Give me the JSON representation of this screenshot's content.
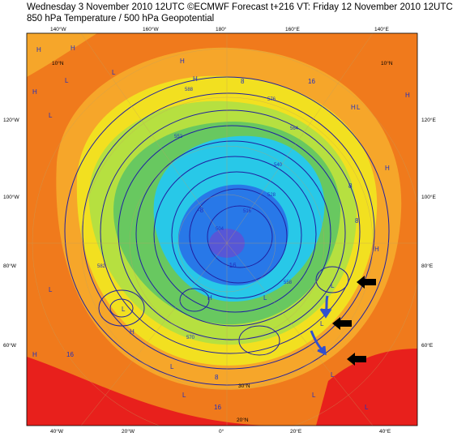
{
  "header": {
    "line1": "Wednesday 3 November 2010 12UTC ©ECMWF Forecast t+216 VT: Friday 12 November 2010 12UTC",
    "line2": "850 hPa Temperature / 500 hPa Geopotential"
  },
  "map": {
    "projection": "polar stereographic (Northern Hemisphere)",
    "palette": {
      "warm_red": "#e8201c",
      "orange": "#f07a1c",
      "light_orange": "#f6a62a",
      "yellow": "#f2e020",
      "light_green": "#b6e040",
      "green": "#68c860",
      "cyan": "#28c8e8",
      "blue": "#2878e8",
      "contour": "#2020a0",
      "arrow": "#3050d0"
    },
    "top_lon_labels": [
      "140°W",
      "160°W",
      "180°",
      "160°E",
      "140°E"
    ],
    "bottom_lon_labels": [
      "40°W",
      "20°W",
      "0°",
      "20°E",
      "40°E"
    ],
    "left_lon_labels": [
      "120°W",
      "100°W",
      "80°W",
      "60°W"
    ],
    "right_lon_labels": [
      "120°E",
      "100°E",
      "80°E",
      "60°E"
    ],
    "lat_labels": [
      "10°N",
      "10°N",
      "30°N",
      "20°N"
    ],
    "contour_labels": [
      "588",
      "576",
      "564",
      "552",
      "540",
      "528",
      "516",
      "504",
      "582",
      "570",
      "558"
    ],
    "temp_labels": [
      "16",
      "8",
      "16",
      "8",
      "8",
      "-8",
      "-16",
      "16",
      "8"
    ],
    "highs": [
      "H",
      "H",
      "H",
      "H",
      "H",
      "H",
      "H",
      "H",
      "H",
      "H",
      "H",
      "H"
    ],
    "lows": [
      "L",
      "L",
      "L",
      "L",
      "L",
      "L",
      "L",
      "L",
      "L",
      "L",
      "L",
      "L",
      "L",
      "L"
    ],
    "annotations": {
      "black_arrows": 3,
      "blue_arrows": 2
    }
  }
}
